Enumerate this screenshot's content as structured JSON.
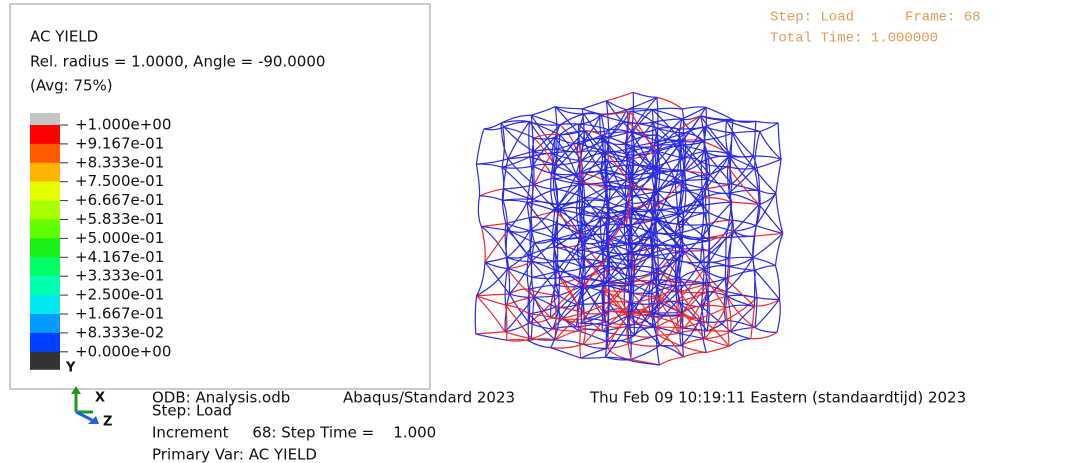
{
  "legend": {
    "title": "AC YIELD",
    "subtitle": "Rel. radius = 1.0000, Angle = -90.0000",
    "averaging": "(Avg: 75%)",
    "levels": [
      "+1.000e+00",
      "+9.167e-01",
      "+8.333e-01",
      "+7.500e-01",
      "+6.667e-01",
      "+5.833e-01",
      "+5.000e-01",
      "+4.167e-01",
      "+3.333e-01",
      "+2.500e-01",
      "+1.667e-01",
      "+8.333e-02",
      "+0.000e+00"
    ],
    "over_color": "#c4c4c4",
    "under_color": "#333333",
    "colors": [
      "#ff0000",
      "#ff5a00",
      "#ffb400",
      "#e6ff00",
      "#a8ff00",
      "#60ff00",
      "#18f018",
      "#00ff66",
      "#00ffb0",
      "#00e8f0",
      "#009cff",
      "#0040ff"
    ]
  },
  "status": {
    "step": "Step: Load",
    "frame": "Frame: 68",
    "total_time": "Total Time: 1.000000"
  },
  "triad": {
    "x": "X",
    "y": "Y",
    "z": "Z"
  },
  "info": {
    "odb": "ODB: Analysis.odb",
    "solver": "Abaqus/Standard 2023",
    "date": "Thu Feb 09 10:19:11 Eastern (standaardtijd) 2023",
    "step": "Step: Load",
    "increment": "Increment     68: Step Time =    1.000",
    "primary": "Primary Var: AC YIELD"
  }
}
